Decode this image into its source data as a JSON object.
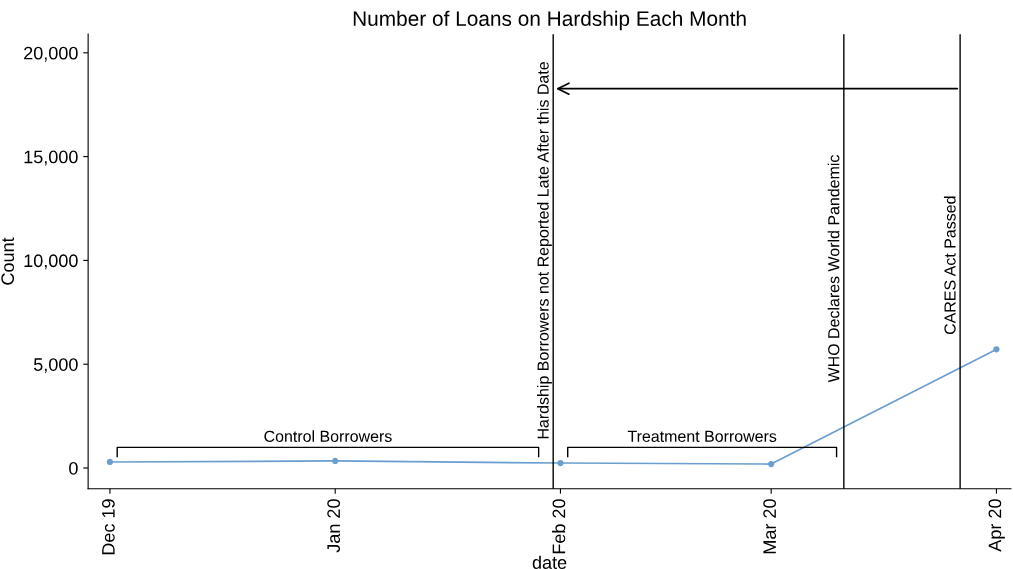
{
  "chart_data": {
    "type": "line",
    "title": "Number of Loans on Hardship Each Month",
    "xlabel": "date",
    "ylabel": "Count",
    "x": [
      "2019-12",
      "2020-01",
      "2020-02",
      "2020-03",
      "2020-04"
    ],
    "series": [
      {
        "color": "#6a9ecf",
        "values": [
          290,
          340,
          240,
          190,
          5720
        ]
      }
    ],
    "marker": "circle",
    "line_style": "solid",
    "grid": false,
    "xlim": [
      "2019-11-28",
      "2020-04-03"
    ],
    "xticks": [
      {
        "value": "2019-12",
        "label": "Dec 19"
      },
      {
        "value": "2020-01",
        "label": "Jan 20"
      },
      {
        "value": "2020-02",
        "label": "Feb 20"
      },
      {
        "value": "2020-03",
        "label": "Mar 20"
      },
      {
        "value": "2020-04",
        "label": "Apr 20"
      }
    ],
    "ylim": [
      -1000,
      20900
    ],
    "yticks": [
      {
        "value": 0,
        "label": "0"
      },
      {
        "value": 5000,
        "label": "5,000"
      },
      {
        "value": 10000,
        "label": "10,000"
      },
      {
        "value": 15000,
        "label": "15,000"
      },
      {
        "value": 20000,
        "label": "20,000"
      }
    ],
    "ref_lines": [
      {
        "axis": "x",
        "value": "2020-01-31",
        "label": "Hardship Borrowers not Reported Late After this Date",
        "color": "#000000"
      },
      {
        "axis": "x",
        "value": "2020-03-11",
        "label": "WHO Declares World Pandemic",
        "color": "#000000"
      },
      {
        "axis": "x",
        "value": "2020-03-27",
        "label": "CARES Act Passed",
        "color": "#000000"
      }
    ],
    "annotations": [
      "Control Borrowers",
      "Treatment Borrowers"
    ]
  }
}
